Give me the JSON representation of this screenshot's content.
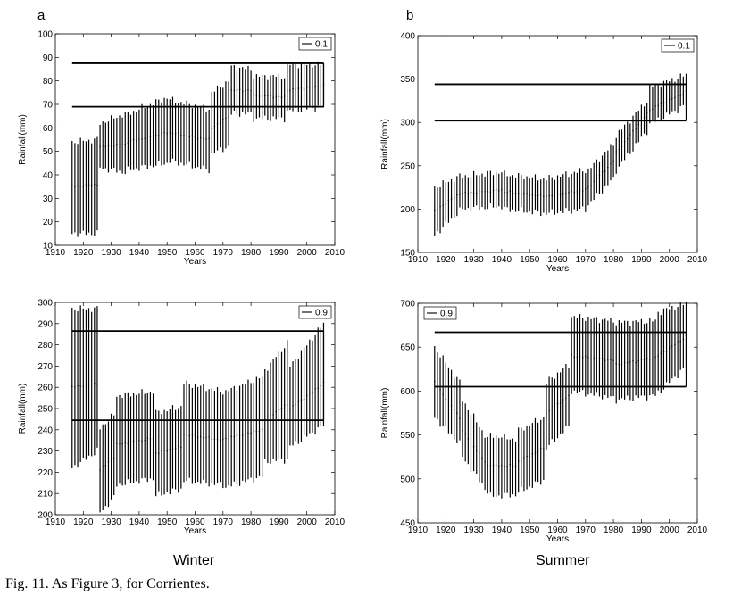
{
  "figure": {
    "caption": "Fig. 11. As Figure 3, for Corrientes.",
    "column_labels": {
      "left": "Winter",
      "right": "Summer"
    },
    "panel_letters": {
      "top_left": "a",
      "top_right": "b"
    }
  },
  "chart_data": [
    {
      "id": "winter_top",
      "type": "errorbar",
      "season": "Winter",
      "xlabel": "Years",
      "ylabel": "Rainfall(mm)",
      "xlim": [
        1910,
        2010
      ],
      "ylim": [
        10,
        100
      ],
      "xticks": [
        1910,
        1920,
        1930,
        1940,
        1950,
        1960,
        1970,
        1980,
        1990,
        2000,
        2010
      ],
      "yticks": [
        10,
        20,
        30,
        40,
        50,
        60,
        70,
        80,
        90,
        100
      ],
      "legend": "0.1",
      "legend_position": "top-right",
      "threshold_lines": [
        {
          "y": 87.5,
          "x_start": 1916,
          "x_end": 2006
        },
        {
          "y": 69,
          "x_start": 1916,
          "x_end": 2006
        }
      ],
      "segments": [
        {
          "x_start": 1916,
          "x_end": 1925,
          "center_start": 35,
          "center_end": 36,
          "low_start": 15,
          "low_end": 15,
          "high_start": 54,
          "high_end": 55
        },
        {
          "x_start": 1926,
          "x_end": 1935,
          "center_start": 52,
          "center_end": 53,
          "low_start": 43,
          "low_end": 41,
          "high_start": 62,
          "high_end": 66
        },
        {
          "x_start": 1936,
          "x_end": 1950,
          "center_start": 54,
          "center_end": 58,
          "low_start": 42,
          "low_end": 45,
          "high_start": 66,
          "high_end": 73
        },
        {
          "x_start": 1951,
          "x_end": 1965,
          "center_start": 58,
          "center_end": 55,
          "low_start": 46,
          "low_end": 42,
          "high_start": 72,
          "high_end": 68
        },
        {
          "x_start": 1966,
          "x_end": 1972,
          "center_start": 60,
          "center_end": 65,
          "low_start": 49,
          "low_end": 52,
          "high_start": 75,
          "high_end": 80
        },
        {
          "x_start": 1973,
          "x_end": 1980,
          "center_start": 76,
          "center_end": 76,
          "low_start": 66,
          "low_end": 66,
          "high_start": 86,
          "high_end": 85
        },
        {
          "x_start": 1981,
          "x_end": 1992,
          "center_start": 74,
          "center_end": 73,
          "low_start": 64,
          "low_end": 64,
          "high_start": 82,
          "high_end": 82
        },
        {
          "x_start": 1993,
          "x_end": 2006,
          "center_start": 76,
          "center_end": 78,
          "low_start": 67,
          "low_end": 69,
          "high_start": 87,
          "high_end": 87
        }
      ]
    },
    {
      "id": "summer_top",
      "type": "errorbar",
      "season": "Summer",
      "xlabel": "Years",
      "ylabel": "Rainfall(mm)",
      "xlim": [
        1910,
        2010
      ],
      "ylim": [
        150,
        400
      ],
      "xticks": [
        1910,
        1920,
        1930,
        1940,
        1950,
        1960,
        1970,
        1980,
        1990,
        2000,
        2010
      ],
      "yticks": [
        150,
        200,
        250,
        300,
        350,
        400
      ],
      "legend": "0.1",
      "legend_position": "top-right",
      "threshold_lines": [
        {
          "y": 344,
          "x_start": 1916,
          "x_end": 2006
        },
        {
          "y": 302,
          "x_start": 1916,
          "x_end": 2006
        }
      ],
      "segments": [
        {
          "x_start": 1916,
          "x_end": 1925,
          "center_start": 198,
          "center_end": 218,
          "low_start": 170,
          "low_end": 198,
          "high_start": 225,
          "high_end": 238
        },
        {
          "x_start": 1926,
          "x_end": 1940,
          "center_start": 218,
          "center_end": 222,
          "low_start": 200,
          "low_end": 203,
          "high_start": 238,
          "high_end": 243
        },
        {
          "x_start": 1941,
          "x_end": 1955,
          "center_start": 220,
          "center_end": 215,
          "low_start": 200,
          "low_end": 195,
          "high_start": 240,
          "high_end": 235
        },
        {
          "x_start": 1956,
          "x_end": 1970,
          "center_start": 215,
          "center_end": 222,
          "low_start": 195,
          "low_end": 200,
          "high_start": 235,
          "high_end": 245
        },
        {
          "x_start": 1971,
          "x_end": 1980,
          "center_start": 225,
          "center_end": 255,
          "low_start": 205,
          "low_end": 235,
          "high_start": 245,
          "high_end": 275
        },
        {
          "x_start": 1981,
          "x_end": 1992,
          "center_start": 265,
          "center_end": 310,
          "low_start": 245,
          "low_end": 290,
          "high_start": 285,
          "high_end": 325
        },
        {
          "x_start": 1993,
          "x_end": 2006,
          "center_start": 315,
          "center_end": 335,
          "low_start": 298,
          "low_end": 320,
          "high_start": 340,
          "high_end": 355
        }
      ]
    },
    {
      "id": "winter_bottom",
      "type": "errorbar",
      "season": "Winter",
      "xlabel": "Years",
      "ylabel": "Rainfall(mm)",
      "xlim": [
        1910,
        2010
      ],
      "ylim": [
        200,
        300
      ],
      "xticks": [
        1910,
        1920,
        1930,
        1940,
        1950,
        1960,
        1970,
        1980,
        1990,
        2000,
        2010
      ],
      "yticks": [
        200,
        210,
        220,
        230,
        240,
        250,
        260,
        270,
        280,
        290,
        300
      ],
      "legend": "0.9",
      "legend_position": "top-right",
      "threshold_lines": [
        {
          "y": 286.5,
          "x_start": 1916,
          "x_end": 2006
        },
        {
          "y": 244.5,
          "x_start": 1916,
          "x_end": 2006
        }
      ],
      "segments": [
        {
          "x_start": 1916,
          "x_end": 1925,
          "center_start": 260,
          "center_end": 262,
          "low_start": 222,
          "low_end": 230,
          "high_start": 297,
          "high_end": 297
        },
        {
          "x_start": 1926,
          "x_end": 1931,
          "center_start": 221,
          "center_end": 227,
          "low_start": 201,
          "low_end": 208,
          "high_start": 241,
          "high_end": 247
        },
        {
          "x_start": 1932,
          "x_end": 1945,
          "center_start": 233,
          "center_end": 236,
          "low_start": 214,
          "low_end": 217,
          "high_start": 256,
          "high_end": 258
        },
        {
          "x_start": 1946,
          "x_end": 1955,
          "center_start": 229,
          "center_end": 232,
          "low_start": 209,
          "low_end": 212,
          "high_start": 248,
          "high_end": 251
        },
        {
          "x_start": 1956,
          "x_end": 1970,
          "center_start": 238,
          "center_end": 235,
          "low_start": 216,
          "low_end": 214,
          "high_start": 262,
          "high_end": 258
        },
        {
          "x_start": 1971,
          "x_end": 1984,
          "center_start": 236,
          "center_end": 240,
          "low_start": 213,
          "low_end": 218,
          "high_start": 258,
          "high_end": 265
        },
        {
          "x_start": 1985,
          "x_end": 1993,
          "center_start": 245,
          "center_end": 252,
          "low_start": 225,
          "low_end": 226,
          "high_start": 268,
          "high_end": 281
        },
        {
          "x_start": 1994,
          "x_end": 2006,
          "center_start": 250,
          "center_end": 262,
          "low_start": 232,
          "low_end": 242,
          "high_start": 270,
          "high_end": 290
        }
      ]
    },
    {
      "id": "summer_bottom",
      "type": "errorbar",
      "season": "Summer",
      "xlabel": "Years",
      "ylabel": "Rainfall(mm)",
      "xlim": [
        1910,
        2010
      ],
      "ylim": [
        450,
        700
      ],
      "xticks": [
        1910,
        1920,
        1930,
        1940,
        1950,
        1960,
        1970,
        1980,
        1990,
        2000,
        2010
      ],
      "yticks": [
        450,
        500,
        550,
        600,
        650,
        700
      ],
      "legend": "0.9",
      "legend_position": "top-left",
      "threshold_lines": [
        {
          "y": 667,
          "x_start": 1916,
          "x_end": 2006
        },
        {
          "y": 605,
          "x_start": 1916,
          "x_end": 2006
        }
      ],
      "segments": [
        {
          "x_start": 1916,
          "x_end": 1925,
          "center_start": 610,
          "center_end": 570,
          "low_start": 570,
          "low_end": 540,
          "high_start": 650,
          "high_end": 610
        },
        {
          "x_start": 1926,
          "x_end": 1935,
          "center_start": 555,
          "center_end": 515,
          "low_start": 525,
          "low_end": 485,
          "high_start": 590,
          "high_end": 545
        },
        {
          "x_start": 1936,
          "x_end": 1945,
          "center_start": 515,
          "center_end": 515,
          "low_start": 480,
          "low_end": 482,
          "high_start": 550,
          "high_end": 545
        },
        {
          "x_start": 1946,
          "x_end": 1955,
          "center_start": 520,
          "center_end": 535,
          "low_start": 485,
          "low_end": 498,
          "high_start": 555,
          "high_end": 570
        },
        {
          "x_start": 1956,
          "x_end": 1964,
          "center_start": 575,
          "center_end": 595,
          "low_start": 535,
          "low_end": 560,
          "high_start": 610,
          "high_end": 630
        },
        {
          "x_start": 1965,
          "x_end": 1980,
          "center_start": 640,
          "center_end": 635,
          "low_start": 600,
          "low_end": 592,
          "high_start": 685,
          "high_end": 680
        },
        {
          "x_start": 1981,
          "x_end": 1995,
          "center_start": 630,
          "center_end": 638,
          "low_start": 590,
          "low_end": 595,
          "high_start": 678,
          "high_end": 680
        },
        {
          "x_start": 1996,
          "x_end": 2006,
          "center_start": 640,
          "center_end": 662,
          "low_start": 598,
          "low_end": 628,
          "high_start": 690,
          "high_end": 700
        }
      ]
    }
  ]
}
